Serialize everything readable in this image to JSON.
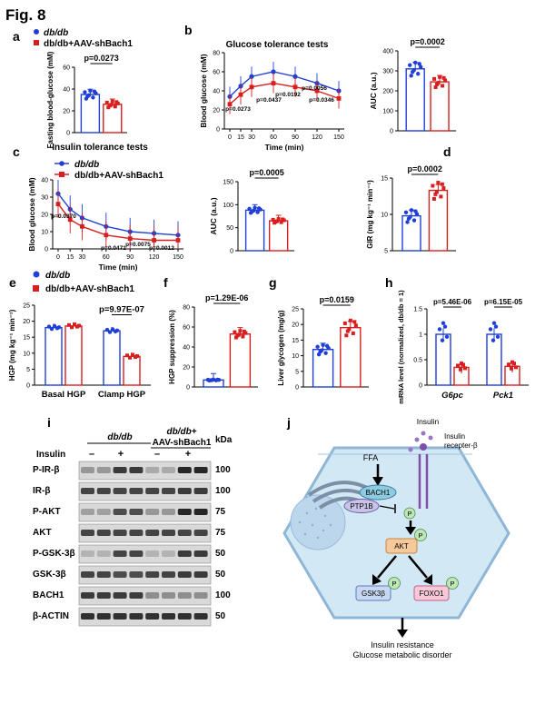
{
  "figure": {
    "title": "Fig. 8"
  },
  "colors": {
    "blue": "#1f3fd6",
    "red": "#d81e1e",
    "axis": "#000000",
    "cell": "#d3e8f5",
    "cell_edge": "#8fb6d6",
    "blot_bg": "#d9d9d9",
    "band": "#1e1e1e",
    "akt_fill": "#f5c99a",
    "gsk_fill": "#c9d8f2",
    "foxo_fill": "#f7c9d8",
    "receptor": "#7d4da8"
  },
  "panels": {
    "a": {
      "letter": "a",
      "legend": [
        "db/db",
        "db/db+AAV-shBach1"
      ],
      "ylabel": "Fasting blood-glucose (mM)",
      "p": "p=0.0273"
    },
    "b": {
      "letter": "b",
      "title": "Glucose tolerance tests",
      "ylabel": "Blood glucose (mM)",
      "xlabel": "Time (min)",
      "pvals": [
        "p=0.0273",
        "p=0.0437",
        "p=0.0192",
        "p=0.0056",
        "p=0.0346"
      ],
      "auc_ylabel": "AUC (a.u.)",
      "auc_p": "p=0.0002"
    },
    "c": {
      "letter": "c",
      "title": "Insulin tolerance tests",
      "legend": [
        "db/db",
        "db/db+AAV-shBach1"
      ],
      "ylabel": "Blood glucose (mM)",
      "xlabel": "Time (min)",
      "pvals": [
        "p=0.0370",
        "p=0.0471",
        "p=0.0075",
        "p=0.0012"
      ],
      "auc_ylabel": "AUC (a.u.)",
      "auc_p": "p=0.0005"
    },
    "d": {
      "letter": "d",
      "ylabel": "GIR (mg kg⁻¹ min⁻¹)",
      "p": "p=0.0002"
    },
    "e": {
      "letter": "e",
      "legend": [
        "db/db",
        "db/db+AAV-shBach1"
      ],
      "ylabel": "HGP (mg kg⁻¹ min⁻¹)",
      "p": "p=9.97E-07",
      "groups": [
        "Basal HGP",
        "Clamp HGP"
      ]
    },
    "f": {
      "letter": "f",
      "ylabel": "HGP suppression (%)",
      "p": "p=1.29E-06"
    },
    "g": {
      "letter": "g",
      "ylabel": "Liver glycogen (mg/g)",
      "p": "p=0.0159"
    },
    "h": {
      "letter": "h",
      "ylabel": "mRNA level (normalized, db/db = 1)",
      "p1": "p=5.46E-06",
      "p2": "p=6.15E-05",
      "genes": [
        "G6pc",
        "Pck1"
      ]
    },
    "i": {
      "letter": "i",
      "group1": "db/db",
      "group2_l1": "db/db+",
      "group2_l2": "AAV-shBach1",
      "insulin_label": "Insulin",
      "signs": [
        "–",
        "+",
        "–",
        "+"
      ],
      "kda": "kDa",
      "rows": [
        {
          "label": "P-IR-β",
          "mw": "100"
        },
        {
          "label": "IR-β",
          "mw": "100"
        },
        {
          "label": "P-AKT",
          "mw": "75"
        },
        {
          "label": "AKT",
          "mw": "75"
        },
        {
          "label": "P-GSK-3β",
          "mw": "50"
        },
        {
          "label": "GSK-3β",
          "mw": "50"
        },
        {
          "label": "BACH1",
          "mw": "100"
        },
        {
          "label": "β-ACTIN",
          "mw": "50"
        }
      ]
    },
    "j": {
      "letter": "j",
      "ffa": "FFA",
      "insulin": "Insulin",
      "receptor": "Insulin",
      "receptor2": "recepter-β",
      "bach1": "BACH1",
      "ptp1b": "PTP1B",
      "akt": "AKT",
      "gsk": "GSK3β",
      "foxo": "FOXO1",
      "p": "P",
      "outcome1": "Insulin resistance",
      "outcome2": "Glucose metabolic disorder"
    }
  },
  "chart_data": [
    {
      "panel": "a",
      "type": "bar",
      "categories": [
        "db/db",
        "db/db+AAV-shBach1"
      ],
      "values": [
        35,
        26
      ],
      "ylim": [
        0,
        60
      ],
      "yticks": [
        0,
        20,
        40,
        60
      ]
    },
    {
      "panel": "b",
      "type": "line",
      "x": [
        0,
        15,
        30,
        60,
        90,
        120,
        150
      ],
      "series": [
        {
          "name": "db/db",
          "values": [
            34,
            45,
            55,
            60,
            55,
            48,
            40
          ]
        },
        {
          "name": "db/db+AAV-shBach1",
          "values": [
            26,
            36,
            44,
            48,
            44,
            40,
            32
          ]
        }
      ],
      "ylim": [
        0,
        80
      ],
      "yticks": [
        0,
        20,
        40,
        60,
        80
      ]
    },
    {
      "panel": "b-auc",
      "type": "bar",
      "categories": [
        "db/db",
        "db/db+AAV-shBach1"
      ],
      "values": [
        310,
        245
      ],
      "ylim": [
        0,
        400
      ],
      "yticks": [
        0,
        100,
        200,
        300,
        400
      ]
    },
    {
      "panel": "c",
      "type": "line",
      "x": [
        0,
        15,
        30,
        60,
        90,
        120,
        150
      ],
      "series": [
        {
          "name": "db/db",
          "values": [
            32,
            23,
            18,
            13,
            10,
            9,
            8
          ]
        },
        {
          "name": "db/db+AAV-shBach1",
          "values": [
            26,
            17,
            13,
            8,
            6,
            5,
            5
          ]
        }
      ],
      "ylim": [
        0,
        40
      ],
      "yticks": [
        0,
        10,
        20,
        30,
        40
      ]
    },
    {
      "panel": "c-auc",
      "type": "bar",
      "categories": [
        "db/db",
        "db/db+AAV-shBach1"
      ],
      "values": [
        88,
        65
      ],
      "ylim": [
        0,
        150
      ],
      "yticks": [
        0,
        50,
        100,
        150
      ]
    },
    {
      "panel": "d",
      "type": "bar",
      "categories": [
        "db/db",
        "db/db+AAV-shBach1"
      ],
      "values": [
        9.8,
        13.3
      ],
      "ylim": [
        5,
        15
      ],
      "yticks": [
        5,
        10,
        15
      ]
    },
    {
      "panel": "e",
      "type": "bar",
      "categories": [
        "Basal HGP",
        "Clamp HGP"
      ],
      "series": [
        {
          "name": "db/db",
          "values": [
            18,
            17
          ]
        },
        {
          "name": "db/db+AAV-shBach1",
          "values": [
            18.5,
            9
          ]
        }
      ],
      "ylim": [
        0,
        25
      ],
      "yticks": [
        0,
        5,
        10,
        15,
        20,
        25
      ]
    },
    {
      "panel": "f",
      "type": "bar",
      "categories": [
        "db/db",
        "db/db+AAV-shBach1"
      ],
      "values": [
        7,
        53
      ],
      "ylim": [
        0,
        80
      ],
      "yticks": [
        0,
        20,
        40,
        60,
        80
      ]
    },
    {
      "panel": "g",
      "type": "bar",
      "categories": [
        "db/db",
        "db/db+AAV-shBach1"
      ],
      "values": [
        12,
        19
      ],
      "ylim": [
        0,
        25
      ],
      "yticks": [
        0,
        5,
        10,
        15,
        20,
        25
      ]
    },
    {
      "panel": "h",
      "type": "bar",
      "categories": [
        "G6pc",
        "Pck1"
      ],
      "series": [
        {
          "name": "db/db",
          "values": [
            1.0,
            1.0
          ]
        },
        {
          "name": "db/db+AAV-shBach1",
          "values": [
            0.35,
            0.37
          ]
        }
      ],
      "ylim": [
        0,
        1.5
      ],
      "yticks": [
        0.0,
        0.5,
        1.0,
        1.5
      ]
    }
  ]
}
